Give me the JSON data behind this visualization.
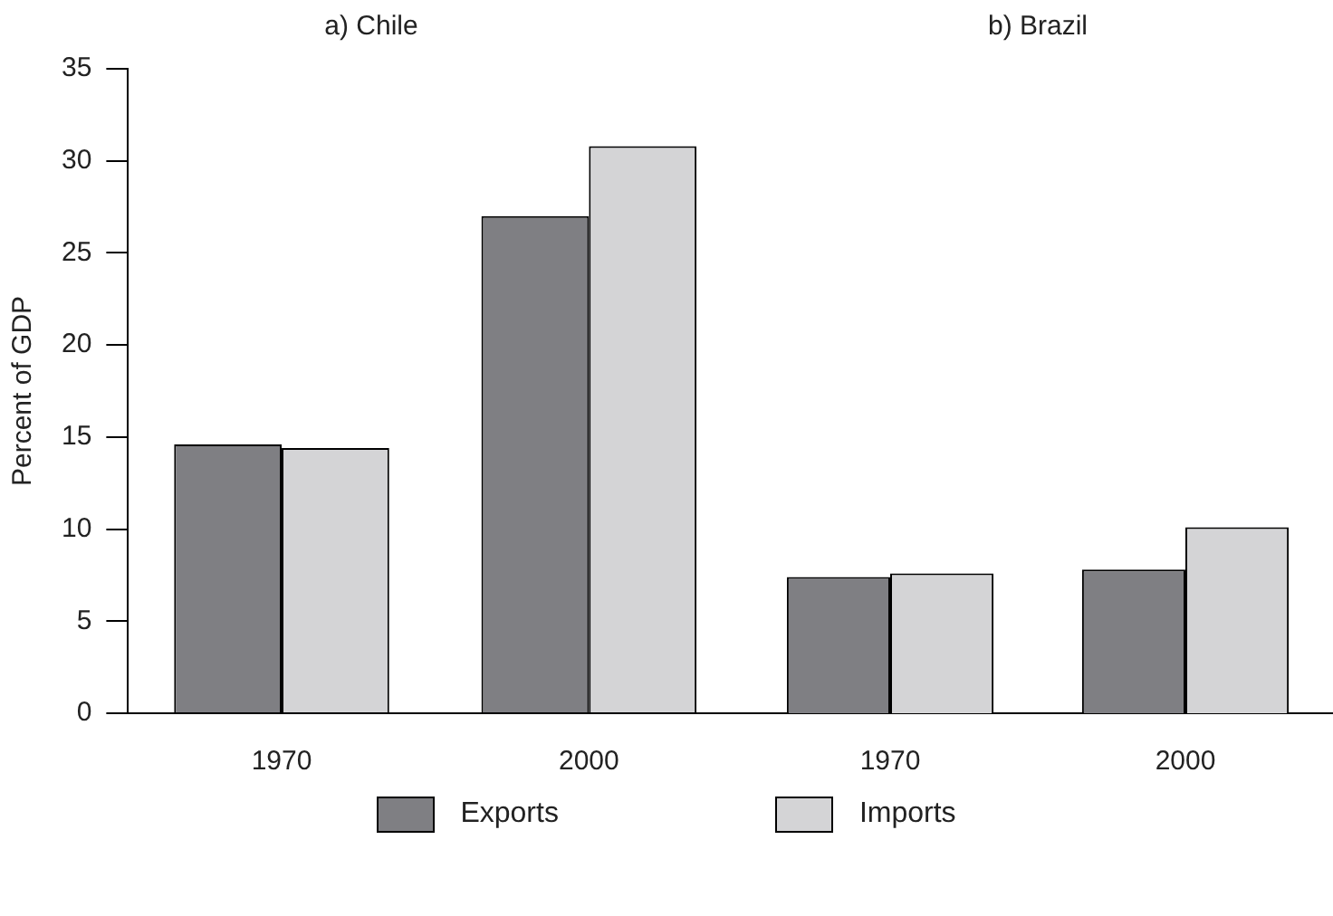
{
  "chart_data": [
    {
      "type": "bar",
      "title": "a) Chile",
      "ylabel": "Percent of GDP",
      "categories": [
        "1970",
        "2000"
      ],
      "series": [
        {
          "name": "Exports",
          "color": "#7f7f83",
          "values": [
            14.6,
            27.0
          ]
        },
        {
          "name": "Imports",
          "color": "#d4d4d6",
          "values": [
            14.4,
            30.8
          ]
        }
      ],
      "ylim": [
        0,
        35
      ],
      "yticks": [
        0,
        5,
        10,
        15,
        20,
        25,
        30,
        35
      ],
      "grid": false,
      "legend": "bottom"
    },
    {
      "type": "bar",
      "title": "b) Brazil",
      "categories": [
        "1970",
        "2000"
      ],
      "series": [
        {
          "color": "#7f7f83",
          "values": [
            7.4,
            7.8
          ]
        },
        {
          "color": "#d4d4d6",
          "values": [
            7.6,
            10.1
          ]
        }
      ],
      "ylim": [
        0,
        35
      ],
      "yticks": [
        0,
        5,
        10,
        15,
        20,
        25,
        30,
        35
      ],
      "grid": false,
      "tick_labels": "x"
    }
  ]
}
